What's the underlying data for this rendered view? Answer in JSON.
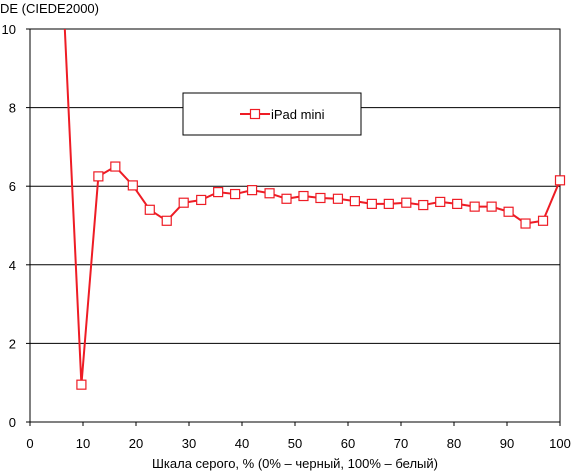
{
  "chart_data": {
    "type": "line",
    "title": "",
    "ylabel": "DE (CIEDE2000)",
    "xlabel": "Шкала серого, % (0% – черный, 100% – белый)",
    "xlim": [
      0,
      100
    ],
    "ylim": [
      0,
      10
    ],
    "x_ticks": [
      "0",
      "10",
      "20",
      "30",
      "40",
      "50",
      "60",
      "70",
      "80",
      "90",
      "100"
    ],
    "y_ticks": [
      "0",
      "2",
      "4",
      "6",
      "8",
      "10"
    ],
    "grid": "horizontal",
    "legend_position": "top-center",
    "series": [
      {
        "name": "iPad mini",
        "color": "#ee1c25",
        "marker": "square-open",
        "x": [
          6.5,
          9.7,
          12.9,
          16.1,
          19.4,
          22.6,
          25.8,
          29.0,
          32.3,
          35.5,
          38.7,
          41.9,
          45.2,
          48.4,
          51.6,
          54.8,
          58.1,
          61.3,
          64.5,
          67.7,
          71.0,
          74.2,
          77.4,
          80.6,
          83.9,
          87.1,
          90.3,
          93.5,
          96.8,
          100
        ],
        "values": [
          10.2,
          0.95,
          6.25,
          6.5,
          6.02,
          5.4,
          5.12,
          5.58,
          5.65,
          5.85,
          5.8,
          5.9,
          5.82,
          5.68,
          5.75,
          5.7,
          5.68,
          5.62,
          5.55,
          5.55,
          5.58,
          5.52,
          5.6,
          5.55,
          5.48,
          5.48,
          5.35,
          5.05,
          5.12,
          6.15
        ],
        "marker_from_index": 1
      }
    ]
  }
}
